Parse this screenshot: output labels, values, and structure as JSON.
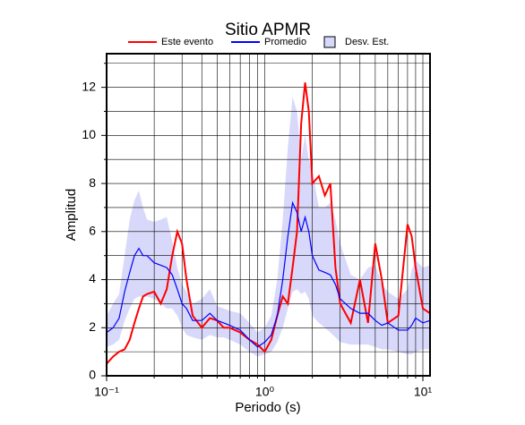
{
  "chart_data": {
    "type": "line",
    "title": "Sitio APMR",
    "x_label": "Periodo (s)",
    "y_label": "Amplitud",
    "log_x": true,
    "grid": true,
    "xlim": [
      0.1,
      11.1
    ],
    "ylim": [
      0,
      13.4
    ],
    "xticks": [
      {
        "value": 0.1,
        "label": "10⁻¹"
      },
      {
        "value": 1,
        "label": "10⁰"
      },
      {
        "value": 10,
        "label": "10¹"
      }
    ],
    "xminor": [
      0.2,
      0.3,
      0.4,
      0.5,
      0.6,
      0.7,
      0.8,
      0.9,
      2,
      3,
      4,
      5,
      6,
      7,
      8,
      9
    ],
    "yticks": [
      0,
      2,
      4,
      6,
      8,
      10,
      12
    ],
    "yminor": [
      1,
      3,
      5,
      7,
      9,
      11,
      13
    ],
    "x": [
      0.1,
      0.11,
      0.12,
      0.13,
      0.14,
      0.15,
      0.16,
      0.17,
      0.18,
      0.2,
      0.22,
      0.24,
      0.26,
      0.28,
      0.3,
      0.32,
      0.35,
      0.4,
      0.45,
      0.5,
      0.55,
      0.6,
      0.7,
      0.8,
      0.9,
      1.0,
      1.1,
      1.2,
      1.3,
      1.4,
      1.5,
      1.6,
      1.7,
      1.8,
      1.9,
      2.0,
      2.2,
      2.4,
      2.6,
      2.8,
      3.0,
      3.5,
      4.0,
      4.5,
      5.0,
      5.5,
      6.0,
      7.0,
      8.0,
      8.5,
      9.0,
      10,
      11.1
    ],
    "series": [
      {
        "name": "Este evento",
        "color": "#ff0000",
        "values": [
          0.5,
          0.8,
          1.0,
          1.1,
          1.5,
          2.2,
          2.8,
          3.3,
          3.4,
          3.5,
          3.0,
          3.6,
          5.0,
          6.0,
          5.5,
          4.0,
          2.5,
          2.0,
          2.4,
          2.3,
          2.0,
          2.0,
          1.8,
          1.5,
          1.3,
          1.0,
          1.5,
          2.5,
          3.3,
          3.0,
          4.5,
          6.0,
          10.5,
          12.2,
          11.0,
          8.0,
          8.3,
          7.5,
          8.0,
          4.5,
          3.0,
          2.2,
          4.0,
          2.2,
          5.5,
          4.0,
          2.2,
          2.5,
          6.3,
          5.8,
          4.5,
          2.8,
          2.6
        ]
      },
      {
        "name": "Promedio",
        "color": "#0000ff",
        "values": [
          1.8,
          2.0,
          2.4,
          3.5,
          4.3,
          5.0,
          5.3,
          5.0,
          5.0,
          4.7,
          4.6,
          4.5,
          4.2,
          3.6,
          3.0,
          2.8,
          2.3,
          2.3,
          2.6,
          2.3,
          2.2,
          2.1,
          1.9,
          1.5,
          1.2,
          1.4,
          1.7,
          2.5,
          4.0,
          5.8,
          7.2,
          6.8,
          6.0,
          6.6,
          6.0,
          5.0,
          4.4,
          4.3,
          4.2,
          3.8,
          3.2,
          2.8,
          2.6,
          2.6,
          2.3,
          2.1,
          2.2,
          1.9,
          1.9,
          2.1,
          2.4,
          2.2,
          2.3
        ]
      },
      {
        "name": "Desv. Est.",
        "color": "#d8d8fa",
        "band": true,
        "upper": [
          2.5,
          3.0,
          3.4,
          5.0,
          6.5,
          7.3,
          7.7,
          7.0,
          6.5,
          6.4,
          6.5,
          6.6,
          5.6,
          4.5,
          3.8,
          3.5,
          3.0,
          3.2,
          3.6,
          2.9,
          2.8,
          2.7,
          2.6,
          2.2,
          1.8,
          2.0,
          2.5,
          4.0,
          6.5,
          9.5,
          11.6,
          11.0,
          9.0,
          10.0,
          9.0,
          8.5,
          7.0,
          7.0,
          7.2,
          6.5,
          5.5,
          4.2,
          4.0,
          4.5,
          4.6,
          3.8,
          3.5,
          3.2,
          3.6,
          4.4,
          4.8,
          4.5,
          4.6
        ],
        "lower": [
          1.2,
          1.3,
          1.5,
          2.3,
          2.8,
          3.2,
          3.3,
          3.3,
          3.3,
          3.2,
          3.0,
          2.8,
          2.8,
          2.5,
          2.0,
          1.7,
          1.6,
          1.5,
          1.7,
          1.6,
          1.6,
          1.5,
          1.3,
          1.0,
          0.8,
          0.9,
          1.0,
          1.4,
          2.0,
          2.8,
          3.5,
          3.6,
          3.4,
          3.5,
          3.2,
          2.5,
          2.2,
          2.0,
          1.8,
          1.6,
          1.4,
          1.3,
          1.3,
          1.3,
          1.2,
          1.1,
          1.1,
          1.0,
          0.9,
          0.9,
          1.0,
          1.1,
          1.1
        ]
      }
    ]
  }
}
